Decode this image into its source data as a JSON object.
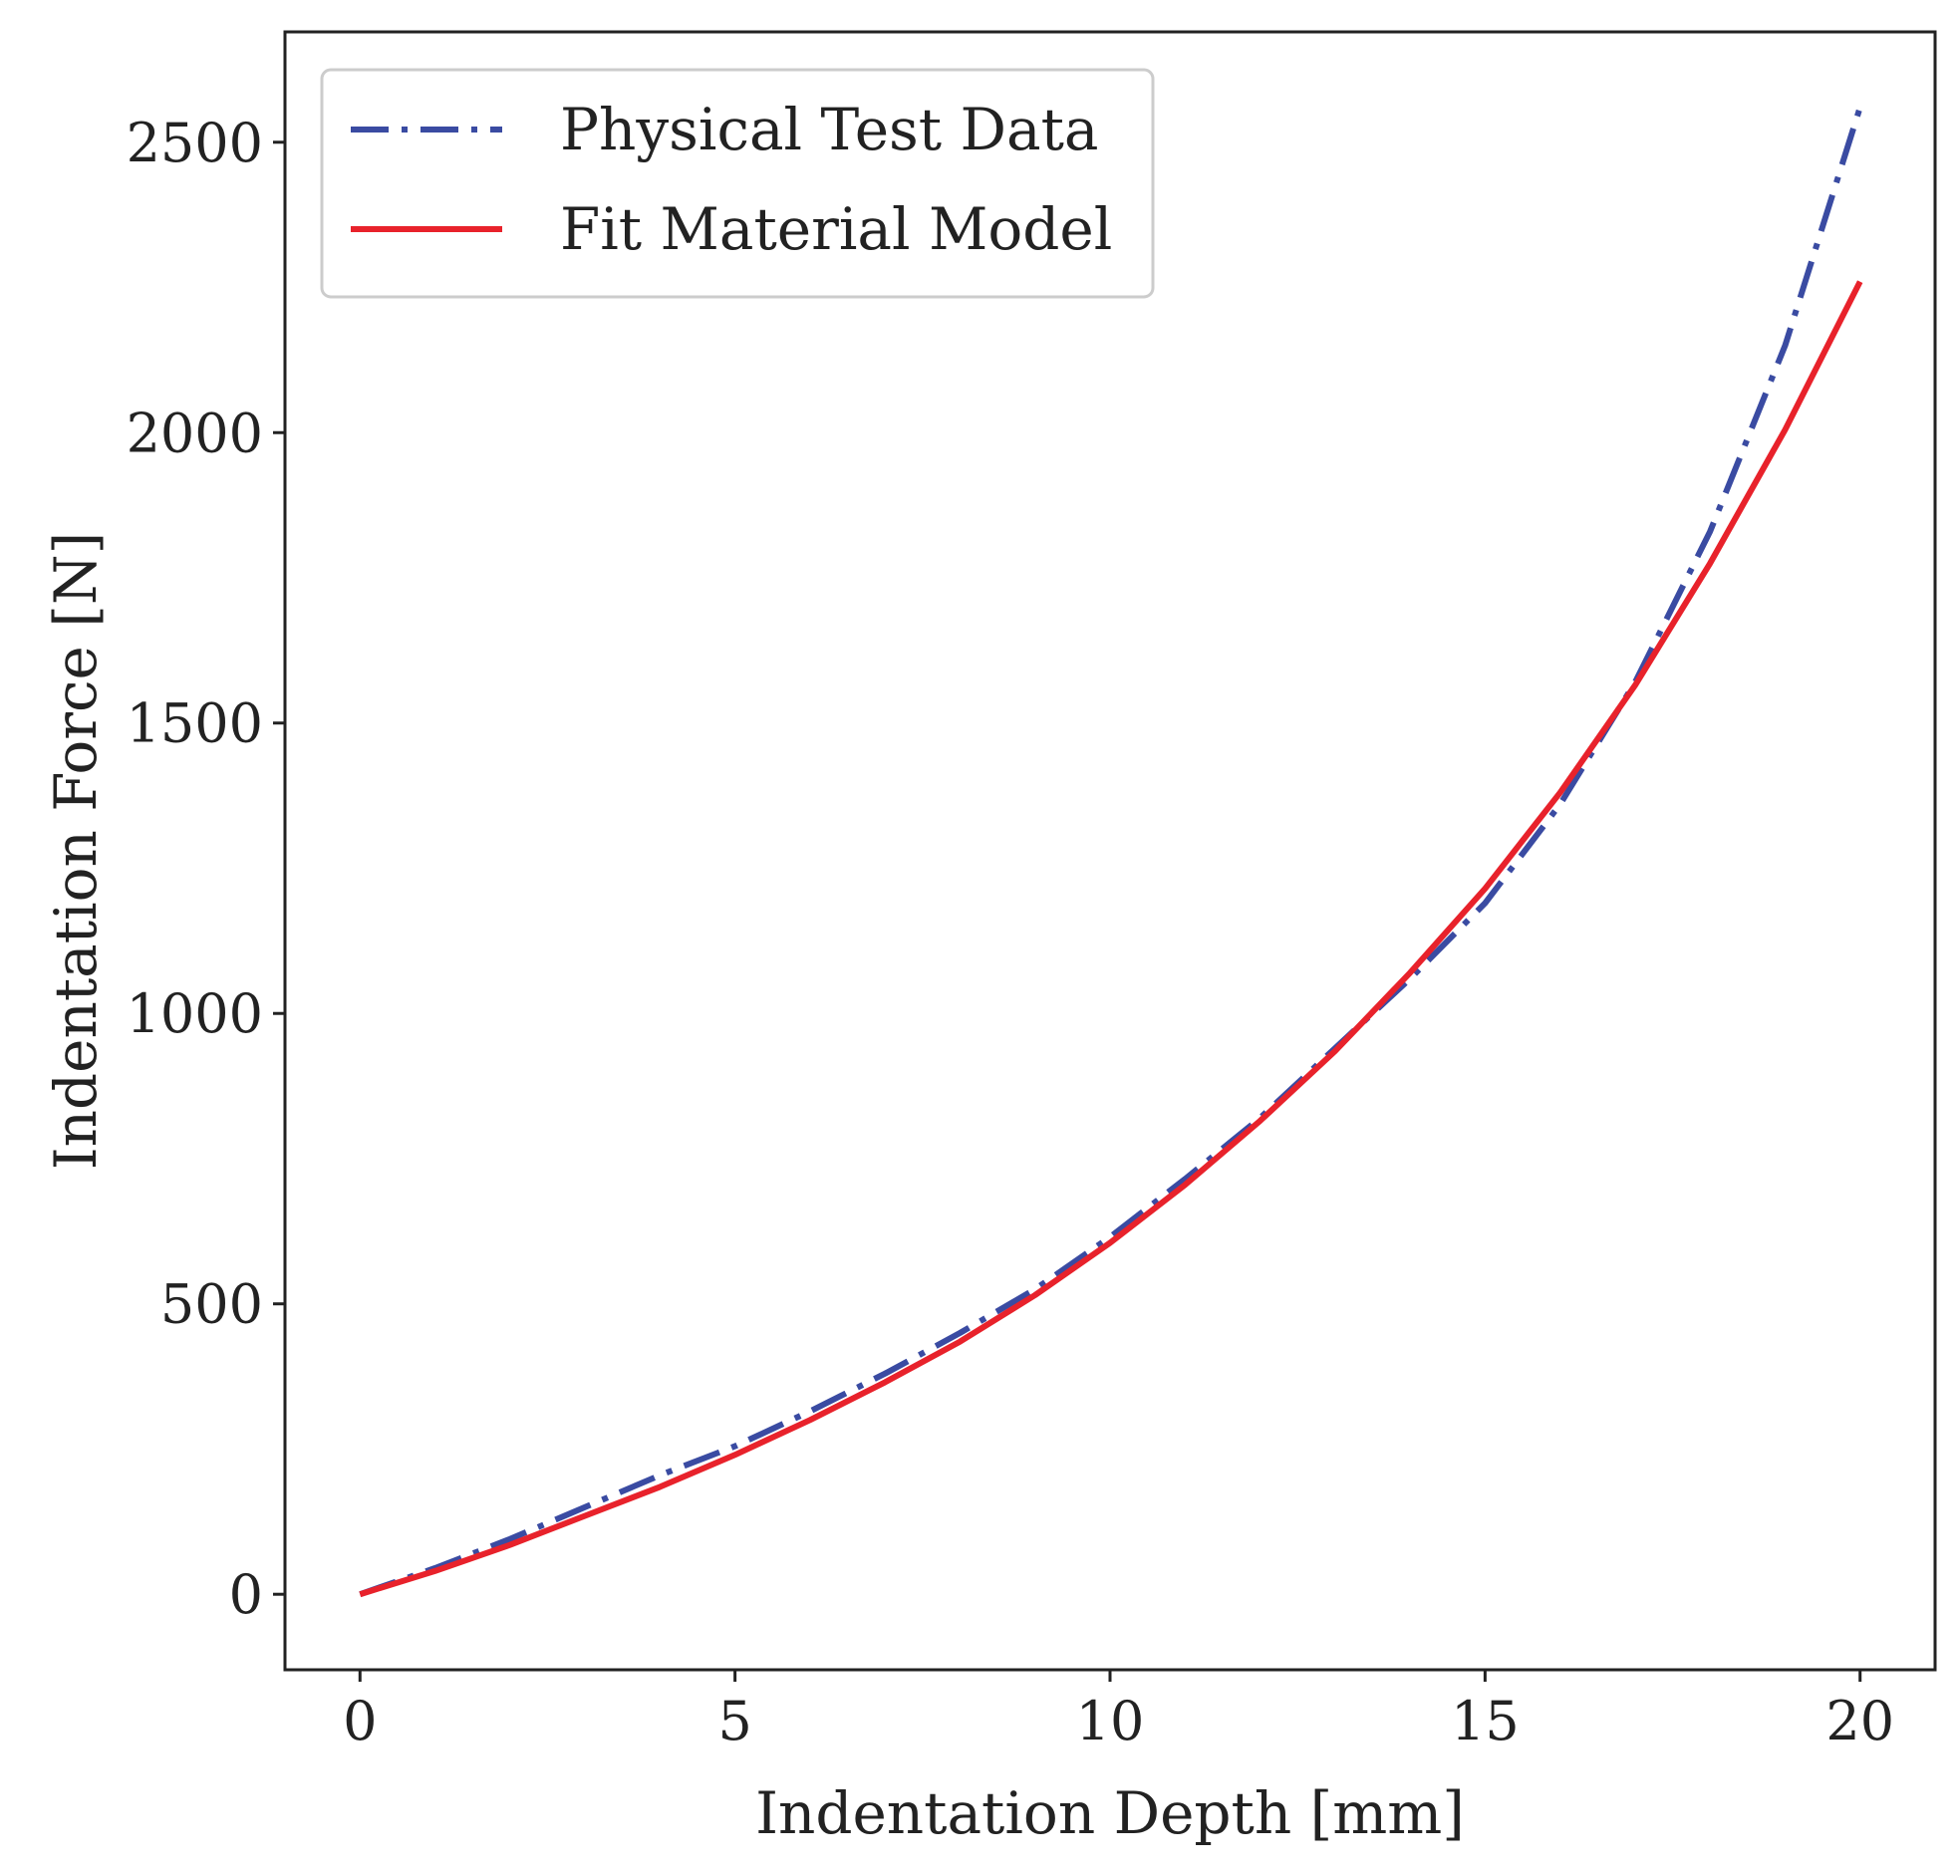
{
  "chart_data": {
    "type": "line",
    "title": "",
    "xlabel": "Indentation Depth [mm]",
    "ylabel": "Indentation Force [N]",
    "xlim": [
      -1,
      21
    ],
    "ylim": [
      -130,
      2690
    ],
    "xticks": [
      0,
      5,
      10,
      15,
      20
    ],
    "yticks": [
      0,
      500,
      1000,
      1500,
      2000,
      2500
    ],
    "grid": false,
    "legend_position": "top-left",
    "series": [
      {
        "name": "Physical Test Data",
        "color": "#3a4ba2",
        "line_style": "dash-dot",
        "x": [
          0,
          1,
          2,
          3,
          4,
          5,
          6,
          7,
          8,
          9,
          10,
          11,
          12,
          13,
          14,
          15,
          16,
          17,
          18,
          19,
          20
        ],
        "y": [
          0,
          45,
          95,
          150,
          205,
          255,
          315,
          380,
          450,
          525,
          615,
          715,
          820,
          940,
          1060,
          1190,
          1360,
          1570,
          1830,
          2150,
          2560
        ]
      },
      {
        "name": "Fit Material Model",
        "color": "#e8222b",
        "line_style": "solid",
        "x": [
          0,
          1,
          2,
          3,
          4,
          5,
          6,
          7,
          8,
          9,
          10,
          11,
          12,
          13,
          14,
          15,
          16,
          17,
          18,
          19,
          20
        ],
        "y": [
          0,
          40,
          85,
          135,
          185,
          240,
          300,
          365,
          435,
          515,
          605,
          705,
          815,
          935,
          1070,
          1215,
          1380,
          1565,
          1775,
          2005,
          2260
        ]
      }
    ]
  }
}
